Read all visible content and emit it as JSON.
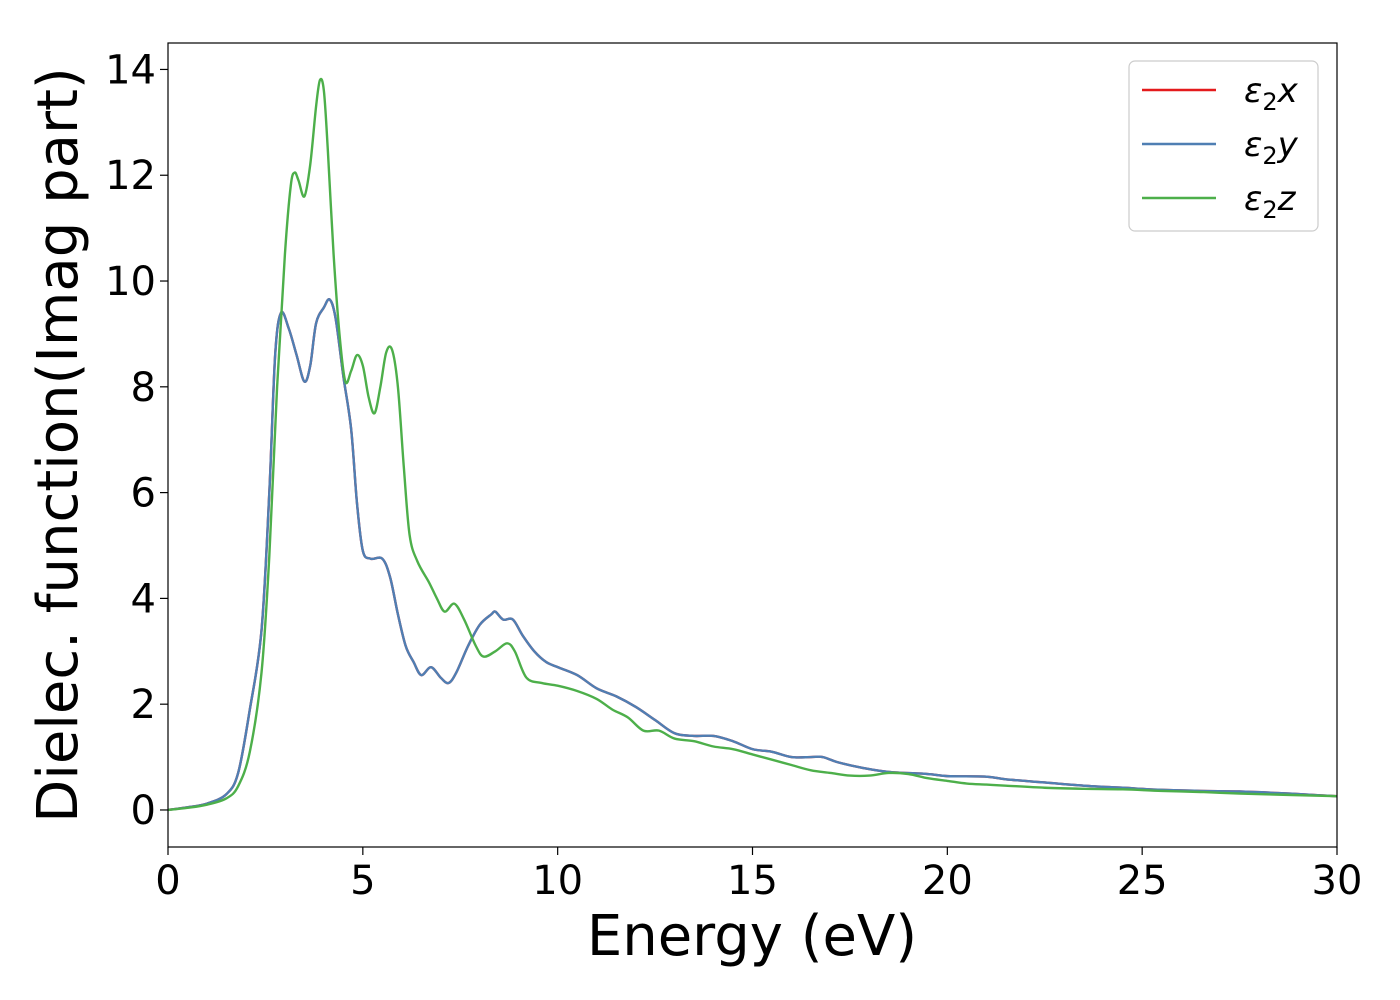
{
  "chart_data": {
    "type": "line",
    "xlabel": "Energy (eV)",
    "ylabel": "Dielec. function(Imag part)",
    "xlim": [
      0,
      30
    ],
    "ylim": [
      -0.7,
      14.5
    ],
    "xticks": [
      "0",
      "5",
      "10",
      "15",
      "20",
      "25",
      "30"
    ],
    "yticks": [
      "0",
      "2",
      "4",
      "6",
      "8",
      "10",
      "12",
      "14"
    ],
    "grid": false,
    "legend_position": "top-right",
    "series": [
      {
        "name": "ε2x",
        "label_base": "ε",
        "label_sub": "2",
        "label_suffix": "x",
        "color": "#e41a1c",
        "points": [
          [
            0,
            0
          ],
          [
            0.5,
            0.05
          ],
          [
            1.0,
            0.12
          ],
          [
            1.5,
            0.3
          ],
          [
            1.8,
            0.7
          ],
          [
            2.1,
            1.9
          ],
          [
            2.4,
            3.4
          ],
          [
            2.6,
            6.0
          ],
          [
            2.75,
            8.6
          ],
          [
            2.9,
            9.4
          ],
          [
            3.1,
            9.1
          ],
          [
            3.3,
            8.6
          ],
          [
            3.5,
            8.1
          ],
          [
            3.65,
            8.4
          ],
          [
            3.8,
            9.2
          ],
          [
            4.0,
            9.5
          ],
          [
            4.15,
            9.65
          ],
          [
            4.3,
            9.3
          ],
          [
            4.5,
            8.2
          ],
          [
            4.7,
            7.2
          ],
          [
            4.85,
            5.8
          ],
          [
            5.0,
            4.9
          ],
          [
            5.2,
            4.75
          ],
          [
            5.5,
            4.75
          ],
          [
            5.7,
            4.4
          ],
          [
            5.9,
            3.7
          ],
          [
            6.1,
            3.1
          ],
          [
            6.3,
            2.8
          ],
          [
            6.5,
            2.55
          ],
          [
            6.75,
            2.7
          ],
          [
            7.0,
            2.5
          ],
          [
            7.2,
            2.4
          ],
          [
            7.4,
            2.6
          ],
          [
            7.7,
            3.1
          ],
          [
            8.0,
            3.5
          ],
          [
            8.3,
            3.7
          ],
          [
            8.4,
            3.75
          ],
          [
            8.6,
            3.6
          ],
          [
            8.85,
            3.6
          ],
          [
            9.1,
            3.3
          ],
          [
            9.4,
            3.0
          ],
          [
            9.7,
            2.8
          ],
          [
            10.0,
            2.7
          ],
          [
            10.5,
            2.55
          ],
          [
            11.0,
            2.3
          ],
          [
            11.5,
            2.15
          ],
          [
            12.0,
            1.95
          ],
          [
            12.5,
            1.7
          ],
          [
            13.0,
            1.45
          ],
          [
            13.5,
            1.4
          ],
          [
            14.0,
            1.4
          ],
          [
            14.5,
            1.3
          ],
          [
            15.0,
            1.15
          ],
          [
            15.5,
            1.1
          ],
          [
            16.0,
            1.0
          ],
          [
            16.5,
            1.0
          ],
          [
            16.8,
            1.0
          ],
          [
            17.2,
            0.9
          ],
          [
            17.8,
            0.8
          ],
          [
            18.5,
            0.72
          ],
          [
            19.5,
            0.68
          ],
          [
            20.0,
            0.64
          ],
          [
            21.0,
            0.63
          ],
          [
            21.5,
            0.58
          ],
          [
            22.5,
            0.52
          ],
          [
            23.5,
            0.46
          ],
          [
            24.5,
            0.42
          ],
          [
            25.5,
            0.38
          ],
          [
            26.5,
            0.36
          ],
          [
            27.5,
            0.35
          ],
          [
            28.5,
            0.32
          ],
          [
            29.5,
            0.28
          ],
          [
            30.0,
            0.26
          ]
        ]
      },
      {
        "name": "ε2y",
        "label_base": "ε",
        "label_sub": "2",
        "label_suffix": "y",
        "color": "#4f7fb3",
        "points": [
          [
            0,
            0
          ],
          [
            0.5,
            0.05
          ],
          [
            1.0,
            0.12
          ],
          [
            1.5,
            0.3
          ],
          [
            1.8,
            0.7
          ],
          [
            2.1,
            1.9
          ],
          [
            2.4,
            3.4
          ],
          [
            2.6,
            6.0
          ],
          [
            2.75,
            8.6
          ],
          [
            2.9,
            9.4
          ],
          [
            3.1,
            9.1
          ],
          [
            3.3,
            8.6
          ],
          [
            3.5,
            8.1
          ],
          [
            3.65,
            8.4
          ],
          [
            3.8,
            9.2
          ],
          [
            4.0,
            9.5
          ],
          [
            4.15,
            9.65
          ],
          [
            4.3,
            9.3
          ],
          [
            4.5,
            8.2
          ],
          [
            4.7,
            7.2
          ],
          [
            4.85,
            5.8
          ],
          [
            5.0,
            4.9
          ],
          [
            5.2,
            4.75
          ],
          [
            5.5,
            4.75
          ],
          [
            5.7,
            4.4
          ],
          [
            5.9,
            3.7
          ],
          [
            6.1,
            3.1
          ],
          [
            6.3,
            2.8
          ],
          [
            6.5,
            2.55
          ],
          [
            6.75,
            2.7
          ],
          [
            7.0,
            2.5
          ],
          [
            7.2,
            2.4
          ],
          [
            7.4,
            2.6
          ],
          [
            7.7,
            3.1
          ],
          [
            8.0,
            3.5
          ],
          [
            8.3,
            3.7
          ],
          [
            8.4,
            3.75
          ],
          [
            8.6,
            3.6
          ],
          [
            8.85,
            3.6
          ],
          [
            9.1,
            3.3
          ],
          [
            9.4,
            3.0
          ],
          [
            9.7,
            2.8
          ],
          [
            10.0,
            2.7
          ],
          [
            10.5,
            2.55
          ],
          [
            11.0,
            2.3
          ],
          [
            11.5,
            2.15
          ],
          [
            12.0,
            1.95
          ],
          [
            12.5,
            1.7
          ],
          [
            13.0,
            1.45
          ],
          [
            13.5,
            1.4
          ],
          [
            14.0,
            1.4
          ],
          [
            14.5,
            1.3
          ],
          [
            15.0,
            1.15
          ],
          [
            15.5,
            1.1
          ],
          [
            16.0,
            1.0
          ],
          [
            16.5,
            1.0
          ],
          [
            16.8,
            1.0
          ],
          [
            17.2,
            0.9
          ],
          [
            17.8,
            0.8
          ],
          [
            18.5,
            0.72
          ],
          [
            19.5,
            0.68
          ],
          [
            20.0,
            0.64
          ],
          [
            21.0,
            0.63
          ],
          [
            21.5,
            0.58
          ],
          [
            22.5,
            0.52
          ],
          [
            23.5,
            0.46
          ],
          [
            24.5,
            0.42
          ],
          [
            25.5,
            0.38
          ],
          [
            26.5,
            0.36
          ],
          [
            27.5,
            0.35
          ],
          [
            28.5,
            0.32
          ],
          [
            29.5,
            0.28
          ],
          [
            30.0,
            0.26
          ]
        ]
      },
      {
        "name": "ε2z",
        "label_base": "ε",
        "label_sub": "2",
        "label_suffix": "z",
        "color": "#4daf4a",
        "points": [
          [
            0,
            0
          ],
          [
            0.5,
            0.04
          ],
          [
            1.0,
            0.1
          ],
          [
            1.5,
            0.22
          ],
          [
            1.8,
            0.45
          ],
          [
            2.1,
            1.1
          ],
          [
            2.4,
            2.6
          ],
          [
            2.6,
            4.8
          ],
          [
            2.8,
            8.0
          ],
          [
            3.0,
            10.5
          ],
          [
            3.15,
            11.8
          ],
          [
            3.25,
            12.05
          ],
          [
            3.35,
            11.9
          ],
          [
            3.5,
            11.6
          ],
          [
            3.65,
            12.2
          ],
          [
            3.8,
            13.3
          ],
          [
            3.9,
            13.8
          ],
          [
            4.0,
            13.6
          ],
          [
            4.1,
            12.5
          ],
          [
            4.25,
            10.5
          ],
          [
            4.4,
            9.0
          ],
          [
            4.55,
            8.1
          ],
          [
            4.7,
            8.3
          ],
          [
            4.85,
            8.6
          ],
          [
            5.0,
            8.4
          ],
          [
            5.15,
            7.8
          ],
          [
            5.3,
            7.5
          ],
          [
            5.45,
            8.0
          ],
          [
            5.6,
            8.65
          ],
          [
            5.75,
            8.7
          ],
          [
            5.9,
            8.0
          ],
          [
            6.05,
            6.5
          ],
          [
            6.2,
            5.2
          ],
          [
            6.4,
            4.7
          ],
          [
            6.7,
            4.3
          ],
          [
            6.9,
            4.0
          ],
          [
            7.1,
            3.75
          ],
          [
            7.35,
            3.9
          ],
          [
            7.6,
            3.6
          ],
          [
            7.9,
            3.1
          ],
          [
            8.1,
            2.9
          ],
          [
            8.4,
            3.0
          ],
          [
            8.7,
            3.15
          ],
          [
            8.9,
            3.0
          ],
          [
            9.2,
            2.5
          ],
          [
            9.6,
            2.4
          ],
          [
            10.0,
            2.35
          ],
          [
            10.5,
            2.25
          ],
          [
            11.0,
            2.1
          ],
          [
            11.4,
            1.9
          ],
          [
            11.8,
            1.75
          ],
          [
            12.2,
            1.5
          ],
          [
            12.6,
            1.5
          ],
          [
            13.0,
            1.35
          ],
          [
            13.5,
            1.3
          ],
          [
            14.0,
            1.2
          ],
          [
            14.5,
            1.15
          ],
          [
            15.0,
            1.05
          ],
          [
            15.5,
            0.95
          ],
          [
            16.0,
            0.85
          ],
          [
            16.5,
            0.75
          ],
          [
            17.0,
            0.7
          ],
          [
            17.5,
            0.65
          ],
          [
            18.0,
            0.65
          ],
          [
            18.5,
            0.7
          ],
          [
            19.0,
            0.68
          ],
          [
            19.5,
            0.6
          ],
          [
            20.0,
            0.55
          ],
          [
            20.5,
            0.5
          ],
          [
            21.0,
            0.48
          ],
          [
            21.5,
            0.46
          ],
          [
            22.5,
            0.42
          ],
          [
            23.5,
            0.4
          ],
          [
            24.5,
            0.39
          ],
          [
            25.5,
            0.36
          ],
          [
            26.5,
            0.34
          ],
          [
            27.5,
            0.31
          ],
          [
            28.5,
            0.29
          ],
          [
            29.5,
            0.27
          ],
          [
            30.0,
            0.26
          ]
        ]
      }
    ]
  }
}
